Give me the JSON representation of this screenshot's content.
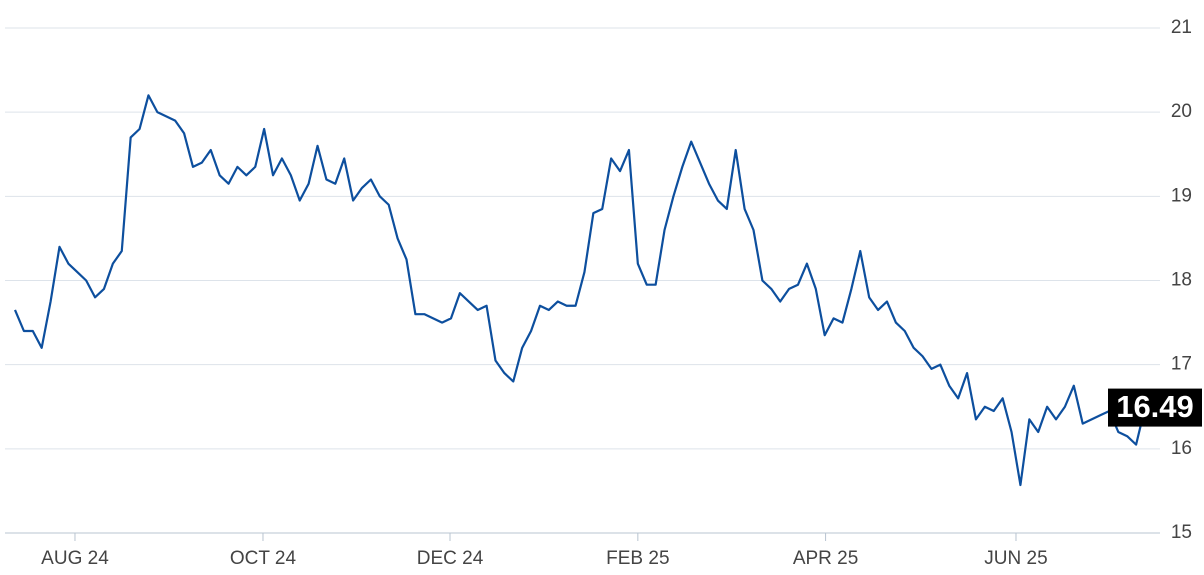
{
  "chart_data": {
    "type": "line",
    "color": "#0d4f9e",
    "grid": true,
    "values": [
      17.65,
      17.4,
      17.4,
      17.2,
      17.75,
      18.4,
      18.2,
      18.1,
      18.0,
      17.8,
      17.9,
      18.2,
      18.35,
      19.7,
      19.8,
      20.2,
      20.0,
      19.95,
      19.9,
      19.75,
      19.35,
      19.4,
      19.55,
      19.25,
      19.15,
      19.35,
      19.25,
      19.35,
      19.8,
      19.25,
      19.45,
      19.25,
      18.95,
      19.15,
      19.6,
      19.2,
      19.15,
      19.45,
      18.95,
      19.1,
      19.2,
      19.0,
      18.9,
      18.5,
      18.25,
      17.6,
      17.6,
      17.55,
      17.5,
      17.55,
      17.85,
      17.75,
      17.65,
      17.7,
      17.05,
      16.9,
      16.8,
      17.2,
      17.4,
      17.7,
      17.65,
      17.75,
      17.7,
      17.7,
      18.1,
      18.8,
      18.85,
      19.45,
      19.3,
      19.55,
      18.2,
      17.95,
      17.95,
      18.6,
      19.0,
      19.35,
      19.65,
      19.4,
      19.15,
      18.95,
      18.85,
      19.55,
      18.85,
      18.6,
      18.0,
      17.9,
      17.75,
      17.9,
      17.95,
      18.2,
      17.9,
      17.35,
      17.55,
      17.5,
      17.9,
      18.35,
      17.8,
      17.65,
      17.75,
      17.5,
      17.4,
      17.2,
      17.1,
      16.95,
      17.0,
      16.75,
      16.6,
      16.9,
      16.35,
      16.5,
      16.45,
      16.6,
      16.2,
      15.57,
      16.35,
      16.2,
      16.5,
      16.35,
      16.5,
      16.75,
      16.3,
      16.35,
      16.4,
      16.45,
      16.2,
      16.15,
      16.05,
      16.49
    ],
    "xlim": [
      0,
      127
    ],
    "xticks": [
      {
        "value": 6.74,
        "label": "AUG 24"
      },
      {
        "value": 27.87,
        "label": "OCT 24"
      },
      {
        "value": 48.89,
        "label": "DEC 24"
      },
      {
        "value": 70.0,
        "label": "FEB 25"
      },
      {
        "value": 91.1,
        "label": "APR 25"
      },
      {
        "value": 112.5,
        "label": "JUN 25"
      }
    ],
    "ylim": [
      15,
      21
    ],
    "yticks": [
      15,
      16,
      17,
      18,
      19,
      20,
      21
    ]
  }
}
